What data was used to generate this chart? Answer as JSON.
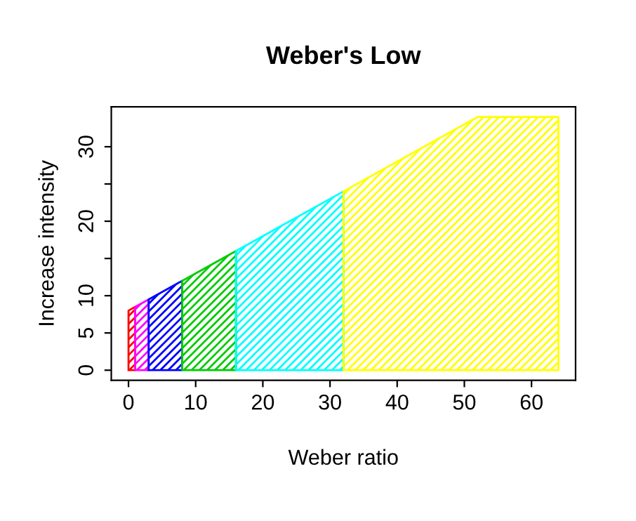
{
  "chart_data": {
    "type": "area",
    "title": "Weber's Low",
    "xlabel": "Weber ratio",
    "ylabel": "Increase intensity",
    "xlim": [
      -2.56,
      66.56
    ],
    "ylim": [
      -1.36,
      35.36
    ],
    "xticks": [
      0,
      10,
      20,
      30,
      40,
      50,
      60
    ],
    "yticks": [
      0,
      5,
      10,
      {
        "value": 15,
        "label": null
      },
      20,
      {
        "value": 25,
        "label": null
      },
      30
    ],
    "grid": false,
    "legend": false,
    "series": [
      {
        "color": "#ff0000",
        "x": [
          0,
          1
        ],
        "values": [
          8,
          8.5
        ]
      },
      {
        "color": "#ff00ff",
        "x": [
          1,
          3
        ],
        "values": [
          8.5,
          9.5
        ]
      },
      {
        "color": "#0000ff",
        "x": [
          3,
          8
        ],
        "values": [
          9.5,
          12
        ]
      },
      {
        "color": "#00cc00",
        "x": [
          8,
          16
        ],
        "values": [
          12,
          16
        ]
      },
      {
        "color": "#00ffff",
        "x": [
          16,
          32
        ],
        "values": [
          16,
          24
        ]
      },
      {
        "color": "#ffff00",
        "x": [
          32,
          52,
          64
        ],
        "values": [
          24,
          34,
          34
        ]
      }
    ]
  }
}
